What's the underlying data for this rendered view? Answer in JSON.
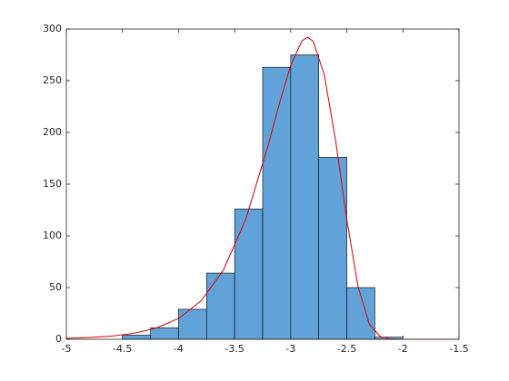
{
  "chart_data": {
    "type": "histogram",
    "bins": [
      -4.5,
      -4.25,
      -4,
      -3.75,
      -3.5,
      -3.25,
      -3,
      -2.75,
      -2.5,
      -2.25,
      -2
    ],
    "counts": [
      4,
      11,
      29,
      64,
      126,
      263,
      275,
      176,
      50,
      2
    ],
    "color": "#61a3d9",
    "fit": {
      "color": "#d40000",
      "x": [
        -5,
        -4.8,
        -4.6,
        -4.4,
        -4.2,
        -4,
        -3.8,
        -3.6,
        -3.4,
        -3.2,
        -3.1,
        -3,
        -2.9,
        -2.85,
        -2.8,
        -2.7,
        -2.6,
        -2.5,
        -2.4,
        -2.3,
        -2.2,
        -2.1,
        -2,
        -1.5
      ],
      "values": [
        0.86,
        1.63,
        3.05,
        5.75,
        10.77,
        20.1,
        37,
        66.9,
        116.3,
        188,
        228.3,
        265,
        288.5,
        292,
        288.2,
        255.4,
        192.2,
        115.6,
        51,
        14.7,
        2.4,
        0.17,
        0,
        0
      ]
    },
    "xlim": [
      -5,
      -1.5
    ],
    "xticks": [
      -5,
      -4.5,
      -4,
      -3.5,
      -3,
      -2.5,
      -2,
      -1.5
    ],
    "ylim": [
      0,
      300
    ],
    "yticks": [
      0,
      50,
      100,
      150,
      200,
      250,
      300
    ]
  }
}
